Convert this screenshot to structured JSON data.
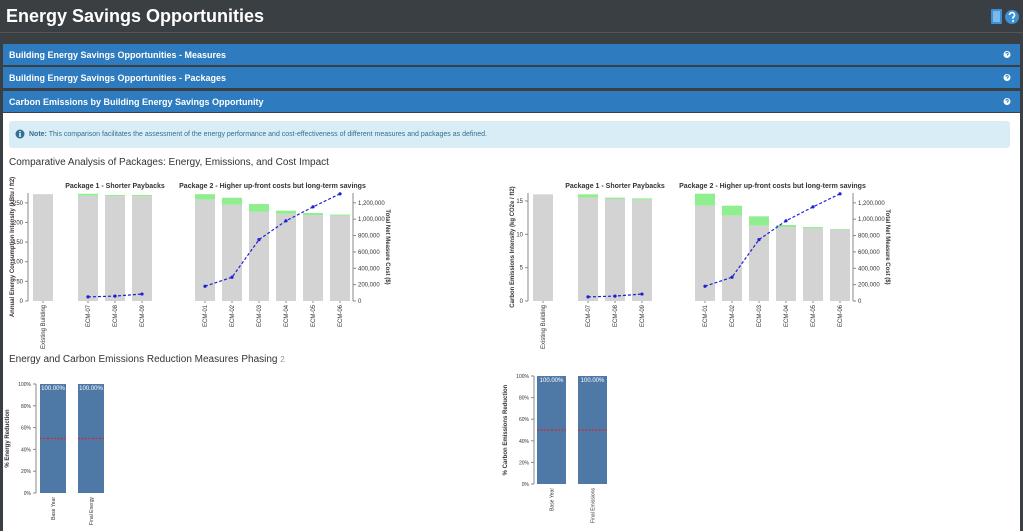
{
  "header": {
    "title": "Energy Savings Opportunities"
  },
  "panels": [
    {
      "title": "Building Energy Savings Opportunities - Measures"
    },
    {
      "title": "Building Energy Savings Opportunities - Packages"
    },
    {
      "title": "Carbon Emissions by Building Energy Savings Opportunity"
    }
  ],
  "note": {
    "label": "Note:",
    "text": "This comparison facilitates the assessment of the energy performance and cost-effectiveness of different measures and packages as defined."
  },
  "sections": [
    {
      "title": "Comparative Analysis of Packages: Energy, Emissions, and Cost Impact"
    },
    {
      "title": "Energy and Carbon Emissions Reduction Measures Phasing",
      "badge": "2"
    }
  ],
  "chart_data": [
    {
      "type": "combo",
      "ylabel": "Annual Energy Consumption Intensity (kBtu / ft2)",
      "y2label": "Total Net Measure Cost ($)",
      "ylim": [
        0,
        275
      ],
      "yticks": [
        0,
        50,
        100,
        150,
        200,
        250
      ],
      "y2lim": [
        0,
        1320000
      ],
      "y2ticks": [
        0,
        {
          "value": 200000,
          "label": "200,000"
        },
        {
          "value": 400000,
          "label": "400,000"
        },
        {
          "value": 600000,
          "label": "600,000"
        },
        {
          "value": 800000,
          "label": "800,000"
        },
        {
          "value": 1000000,
          "label": "1,000,000"
        },
        {
          "value": 1200000,
          "label": "1,200,000"
        }
      ],
      "groups": [
        {
          "categories": [
            "Existing Building"
          ],
          "series": [
            {
              "color": "#d3d3d3",
              "values": [
                272
              ]
            }
          ]
        },
        {
          "title": "Package 1 - Shorter Paybacks",
          "categories": [
            "ECM-07",
            "ECM-08",
            "ECM-09"
          ],
          "series": [
            {
              "color": "#d3d3d3",
              "values": [
                268,
                267,
                267
              ]
            },
            {
              "color": "#90ee90",
              "values": [
                5,
                3,
                3
              ]
            },
            {
              "color": "#1f1fd6",
              "axis": "y2",
              "values": [
                50000,
                60000,
                85000
              ]
            }
          ]
        },
        {
          "title": "Package 2 - Higher up-front costs but long-term savings",
          "categories": [
            "ECM-01",
            "ECM-02",
            "ECM-03",
            "ECM-04",
            "ECM-05",
            "ECM-06"
          ],
          "series": [
            {
              "color": "#d3d3d3",
              "values": [
                258,
                245,
                227,
                222,
                219,
                217
              ]
            },
            {
              "color": "#90ee90",
              "values": [
                14,
                18,
                20,
                8,
                5,
                3
              ]
            },
            {
              "color": "#1f1fd6",
              "axis": "y2",
              "values": [
                180000,
                290000,
                750000,
                980000,
                1150000,
                1310000
              ]
            }
          ]
        }
      ]
    },
    {
      "type": "combo",
      "ylabel": "Carbon Emissions Intensity (kg CO2e / ft2)",
      "y2label": "Total Net Measure Cost ($)",
      "ylim": [
        0,
        16.2
      ],
      "yticks": [
        0,
        5,
        10,
        15
      ],
      "y2lim": [
        0,
        1320000
      ],
      "y2ticks": [
        0,
        {
          "value": 200000,
          "label": "200,000"
        },
        {
          "value": 400000,
          "label": "400,000"
        },
        {
          "value": 600000,
          "label": "600,000"
        },
        {
          "value": 800000,
          "label": "800,000"
        },
        {
          "value": 1000000,
          "label": "1,000,000"
        },
        {
          "value": 1200000,
          "label": "1,200,000"
        }
      ],
      "groups": [
        {
          "categories": [
            "Existing Building"
          ],
          "series": [
            {
              "color": "#d3d3d3",
              "values": [
                16
              ]
            }
          ]
        },
        {
          "title": "Package 1 - Shorter Paybacks",
          "categories": [
            "ECM-07",
            "ECM-08",
            "ECM-09"
          ],
          "series": [
            {
              "color": "#d3d3d3",
              "values": [
                15.5,
                15.3,
                15.2
              ]
            },
            {
              "color": "#90ee90",
              "values": [
                0.5,
                0.2,
                0.2
              ]
            },
            {
              "color": "#1f1fd6",
              "axis": "y2",
              "values": [
                50000,
                60000,
                85000
              ]
            }
          ]
        },
        {
          "title": "Package 2 - Higher up-front costs but long-term savings",
          "categories": [
            "ECM-01",
            "ECM-02",
            "ECM-03",
            "ECM-04",
            "ECM-05",
            "ECM-06"
          ],
          "series": [
            {
              "color": "#d3d3d3",
              "values": [
                14.3,
                12.8,
                11.3,
                11.1,
                10.9,
                10.7
              ]
            },
            {
              "color": "#90ee90",
              "values": [
                1.8,
                1.5,
                1.4,
                0.3,
                0.2,
                0.1
              ]
            },
            {
              "color": "#1f1fd6",
              "axis": "y2",
              "values": [
                180000,
                290000,
                750000,
                980000,
                1150000,
                1310000
              ]
            }
          ]
        }
      ]
    },
    {
      "type": "bar",
      "ylabel": "% Energy Reduction",
      "ylim": [
        0,
        100
      ],
      "yticks": [
        {
          "value": 0,
          "label": "0%"
        },
        {
          "value": 20,
          "label": "20%"
        },
        {
          "value": 40,
          "label": "40%"
        },
        {
          "value": 60,
          "label": "60%"
        },
        {
          "value": 80,
          "label": "80%"
        },
        {
          "value": 100,
          "label": "100%"
        }
      ],
      "categories": [
        "Base Year",
        "Final Energy"
      ],
      "values": [
        100,
        100
      ],
      "value_labels": [
        "100.00%",
        "100.00%"
      ],
      "color": "#4e79a7",
      "hline": 50,
      "hline_color": "#d62728"
    },
    {
      "type": "bar",
      "ylabel": "% Carbon Emissions Reduction",
      "ylim": [
        0,
        100
      ],
      "yticks": [
        {
          "value": 0,
          "label": "0%"
        },
        {
          "value": 20,
          "label": "20%"
        },
        {
          "value": 40,
          "label": "40%"
        },
        {
          "value": 60,
          "label": "60%"
        },
        {
          "value": 80,
          "label": "80%"
        },
        {
          "value": 100,
          "label": "100%"
        }
      ],
      "categories": [
        "Base Year",
        "Final Emissions"
      ],
      "values": [
        100,
        100
      ],
      "value_labels": [
        "100.00%",
        "100.00%"
      ],
      "color": "#4e79a7",
      "hline": 50,
      "hline_color": "#d62728"
    }
  ]
}
